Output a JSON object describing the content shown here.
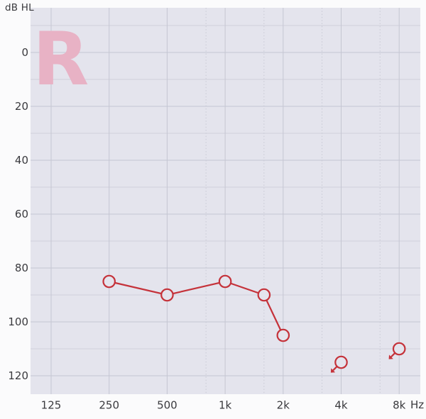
{
  "axes": {
    "y_label": "dB HL",
    "x_unit": "Hz",
    "y_ticks": [
      0,
      20,
      40,
      60,
      80,
      100,
      120
    ],
    "x_ticks": [
      {
        "label": "125",
        "freq_hz": 125
      },
      {
        "label": "250",
        "freq_hz": 250
      },
      {
        "label": "500",
        "freq_hz": 500
      },
      {
        "label": "1k",
        "freq_hz": 1000
      },
      {
        "label": "2k",
        "freq_hz": 2000
      },
      {
        "label": "4k",
        "freq_hz": 4000
      },
      {
        "label": "8k",
        "freq_hz": 8000
      }
    ]
  },
  "watermark": "R",
  "colors": {
    "page_bg": "#fbfbfc",
    "plot_bg": "#e4e4ed",
    "grid_major": "#c5c6d2",
    "grid_minor": "#d0d1dc",
    "grid_dotted": "#c8c9d4",
    "series_red": "#c5323a",
    "watermark_pink": "#e8b2c5",
    "tick_text": "#3a3a3e"
  },
  "chart_data": {
    "type": "line",
    "chart_kind": "audiogram",
    "title": "",
    "xlabel": "Hz",
    "ylabel": "dB HL",
    "x_categories": [
      "125",
      "250",
      "500",
      "1k",
      "2k",
      "4k",
      "8k"
    ],
    "x_minor_gridlines_hz": [
      750,
      1500,
      3000,
      6000
    ],
    "y_ticks": [
      0,
      20,
      40,
      60,
      80,
      100,
      120
    ],
    "y_gridline_step_db": 10,
    "ylim": [
      -15,
      127
    ],
    "y_axis_inverted_db_downward": true,
    "grid": true,
    "legend": "none",
    "watermark": "R",
    "series": [
      {
        "name": "air-conduction-right-ear",
        "marker": "open-circle",
        "color": "#c5323a",
        "connected_points": [
          {
            "freq_hz": 250,
            "db_hl": 85
          },
          {
            "freq_hz": 500,
            "db_hl": 90
          },
          {
            "freq_hz": 1000,
            "db_hl": 85
          },
          {
            "freq_hz": 1500,
            "db_hl": 90
          },
          {
            "freq_hz": 2000,
            "db_hl": 105
          }
        ],
        "no_response_points": [
          {
            "freq_hz": 4000,
            "db_hl": 115,
            "arrow": "down-left"
          },
          {
            "freq_hz": 8000,
            "db_hl": 110,
            "arrow": "down-left"
          }
        ]
      }
    ]
  }
}
